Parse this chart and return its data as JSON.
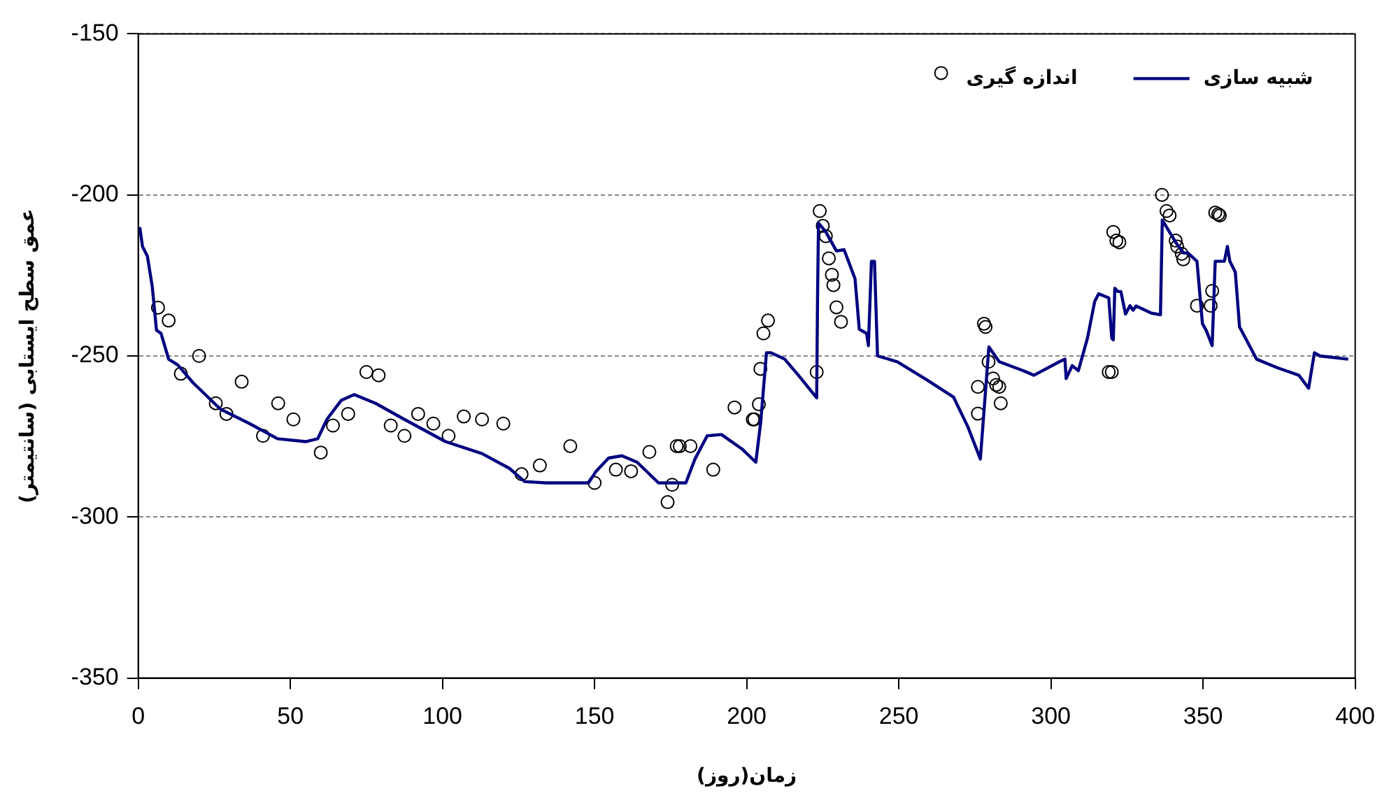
{
  "chart_data": {
    "type": "scatter",
    "xlabel": "زمان(روز)",
    "ylabel": "عمق سطح ایستابی (سانتیمتر)",
    "xlim": [
      0,
      400
    ],
    "xticks": [
      0,
      50,
      100,
      150,
      200,
      250,
      300,
      350,
      400
    ],
    "ylim": [
      -350,
      -150
    ],
    "yticks": [
      -350,
      -300,
      -250,
      -200,
      -150
    ],
    "grid": "y",
    "legend": "top right",
    "series": [
      {
        "name": "شبیه سازی",
        "type": "line",
        "color": "#000080",
        "marker": "none",
        "line_style": "solid",
        "x": [
          0.5,
          1.4,
          3,
          4.6,
          6,
          7.5,
          10,
          13,
          18,
          27,
          36.6,
          45.8,
          55,
          59,
          62,
          66.7,
          71,
          78,
          87.5,
          101,
          113,
          122,
          127,
          134,
          148,
          150.5,
          154.6,
          159,
          164,
          171,
          180,
          183,
          187,
          191.7,
          198.6,
          203,
          204.6,
          206.5,
          208,
          212.5,
          217,
          223,
          223.3,
          223.6,
          226,
          229.5,
          232,
          235.6,
          237,
          239.4,
          240,
          241,
          242,
          243,
          249.5,
          259,
          268,
          272.7,
          276.8,
          279.6,
          283,
          291,
          294.4,
          302.8,
          304.6,
          305,
          307,
          309,
          312,
          314.4,
          315.7,
          319,
          320,
          320.5,
          321,
          322,
          323,
          324.5,
          326,
          327,
          328,
          333,
          336,
          336.6,
          341,
          343.5,
          345,
          348,
          349.8,
          351,
          353,
          354,
          357,
          358,
          358.8,
          360.6,
          362,
          367.6,
          374.5,
          381.5,
          384.7,
          386.6,
          388.4,
          397.7
        ],
        "values": [
          -210,
          -216,
          -219,
          -228.4,
          -242,
          -243,
          -251,
          -252.8,
          -258.3,
          -266.5,
          -271,
          -275.7,
          -276.6,
          -275.7,
          -269.7,
          -263.8,
          -262,
          -264.7,
          -269.7,
          -276.6,
          -280.3,
          -284.9,
          -289,
          -289.4,
          -289.4,
          -285.8,
          -281.7,
          -281,
          -283,
          -289.4,
          -289.4,
          -282,
          -274.8,
          -274.4,
          -279,
          -283,
          -270.6,
          -249,
          -249,
          -251,
          -256,
          -263,
          -230.7,
          -208.7,
          -211.5,
          -217.4,
          -217,
          -226,
          -241.7,
          -243,
          -246.8,
          -220.6,
          -220.6,
          -250,
          -251.8,
          -257.3,
          -262.8,
          -272,
          -282,
          -247.2,
          -251.8,
          -254.6,
          -256,
          -251.8,
          -251,
          -257,
          -253,
          -254.6,
          -244.5,
          -233,
          -230.7,
          -232,
          -244.5,
          -245,
          -229,
          -230,
          -230,
          -237,
          -234.4,
          -235.8,
          -234.5,
          -236.7,
          -237.2,
          -207.8,
          -214.7,
          -218,
          -218,
          -220.6,
          -240,
          -242,
          -246.8,
          -220.6,
          -220.6,
          -216,
          -220.6,
          -224,
          -241,
          -251,
          -253.7,
          -256,
          -260,
          -249,
          -250,
          -251
        ]
      },
      {
        "name": "اندازه گیری",
        "type": "scatter",
        "color": "#000000",
        "marker": "circle",
        "x": [
          6.5,
          10,
          14,
          20,
          25.5,
          29,
          34,
          41,
          46,
          51,
          60,
          64,
          69,
          75,
          79,
          83,
          87.5,
          92,
          97,
          102,
          107,
          113,
          120,
          126,
          132,
          142,
          150,
          157,
          162,
          168,
          174,
          175.5,
          177,
          178,
          181.5,
          189,
          196,
          202,
          202.5,
          204,
          204.5,
          205.5,
          207,
          223,
          224,
          225,
          226,
          227,
          228,
          228.5,
          229.5,
          231,
          276,
          276,
          278,
          278.5,
          279.5,
          281,
          282,
          283,
          283.5,
          319,
          320,
          320.5,
          321.5,
          322.5,
          336.5,
          338,
          339,
          341,
          341.5,
          343,
          343.5,
          348,
          352.5,
          353,
          354,
          355,
          355.5
        ],
        "values": [
          -235,
          -239,
          -255.5,
          -250,
          -264.7,
          -268,
          -258,
          -274.8,
          -264.7,
          -269.7,
          -280,
          -271.6,
          -268,
          -255,
          -256,
          -271.6,
          -274.8,
          -268,
          -271,
          -274.8,
          -268.8,
          -269.7,
          -271,
          -286.7,
          -284,
          -278,
          -289.4,
          -285.3,
          -285.8,
          -279.8,
          -295.4,
          -290,
          -278,
          -278,
          -278,
          -285.3,
          -266,
          -269.7,
          -269.7,
          -265,
          -254,
          -243,
          -239,
          -255,
          -205,
          -209.6,
          -212.8,
          -219.7,
          -224.8,
          -228,
          -234.9,
          -239.4,
          -259.6,
          -267.9,
          -240,
          -241,
          -251.8,
          -257,
          -259,
          -259.6,
          -264.7,
          -255,
          -255,
          -211.5,
          -214.2,
          -214.7,
          -200,
          -205,
          -206.4,
          -214.2,
          -216,
          -218.3,
          -220,
          -234.4,
          -234.4,
          -229.8,
          -205.5,
          -206,
          -206.4
        ]
      }
    ]
  }
}
